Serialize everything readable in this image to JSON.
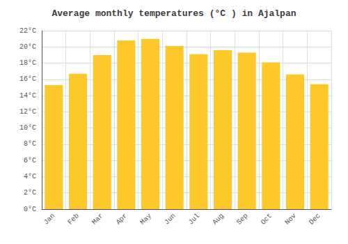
{
  "chart_data": {
    "type": "bar",
    "title": "Average monthly temperatures (°C ) in Ajalpan",
    "categories": [
      "Jan",
      "Feb",
      "Mar",
      "Apr",
      "May",
      "Jun",
      "Jul",
      "Aug",
      "Sep",
      "Oct",
      "Nov",
      "Dec"
    ],
    "values": [
      15.3,
      16.7,
      19.0,
      20.8,
      21.0,
      20.1,
      19.1,
      19.6,
      19.3,
      18.1,
      16.6,
      15.4
    ],
    "color": "#FFC82A",
    "ylim": [
      0,
      22
    ],
    "yticks": [
      {
        "value": 0,
        "label": "0°C"
      },
      {
        "value": 2,
        "label": "2°C"
      },
      {
        "value": 4,
        "label": "4°C"
      },
      {
        "value": 6,
        "label": "6°C"
      },
      {
        "value": 8,
        "label": "8°C"
      },
      {
        "value": 10,
        "label": "10°C"
      },
      {
        "value": 12,
        "label": "12°C"
      },
      {
        "value": 14,
        "label": "14°C"
      },
      {
        "value": 16,
        "label": "16°C"
      },
      {
        "value": 18,
        "label": "18°C"
      },
      {
        "value": 20,
        "label": "20°C"
      },
      {
        "value": 22,
        "label": "22°C"
      }
    ],
    "grid": true
  }
}
